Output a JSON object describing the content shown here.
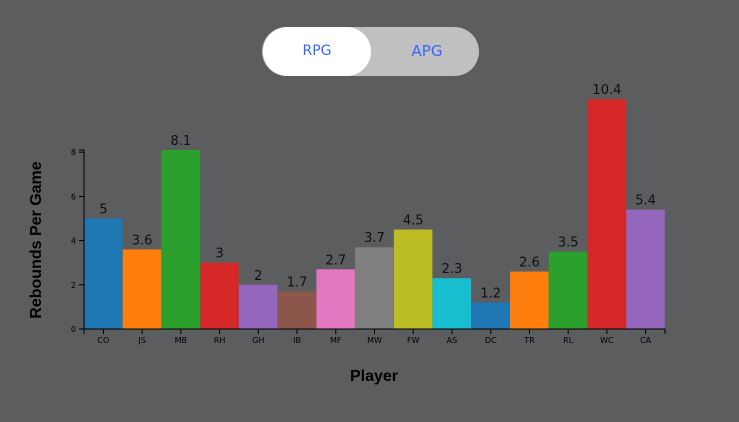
{
  "toggle": {
    "option_a": "RPG",
    "option_b": "APG",
    "selected": "RPG"
  },
  "chart_data": {
    "type": "bar",
    "xlabel": "Player",
    "ylabel": "Rebounds Per Game",
    "ylim": [
      0,
      8.1
    ],
    "yticks": [
      0,
      2,
      4,
      6,
      8
    ],
    "grid": false,
    "categories": [
      "CO",
      "JS",
      "MB",
      "RH",
      "GH",
      "IB",
      "MF",
      "MW",
      "FW",
      "AS",
      "DC",
      "TR",
      "RL",
      "WC",
      "CA"
    ],
    "values": [
      5,
      3.6,
      8.1,
      3,
      2,
      1.7,
      2.7,
      3.7,
      4.5,
      2.3,
      1.2,
      2.6,
      3.5,
      10.4,
      5.4
    ],
    "value_labels": [
      "5",
      "3.6",
      "8.1",
      "3",
      "2",
      "1.7",
      "2.7",
      "3.7",
      "4.5",
      "2.3",
      "1.2",
      "2.6",
      "3.5",
      "10.4",
      "5.4"
    ],
    "colors": [
      "#1f77b4",
      "#ff7f0e",
      "#2ca02c",
      "#d62728",
      "#9467bd",
      "#8c564b",
      "#e377c2",
      "#7f7f7f",
      "#bcbd22",
      "#17becf",
      "#1f77b4",
      "#ff7f0e",
      "#2ca02c",
      "#d62728",
      "#9467bd"
    ]
  }
}
